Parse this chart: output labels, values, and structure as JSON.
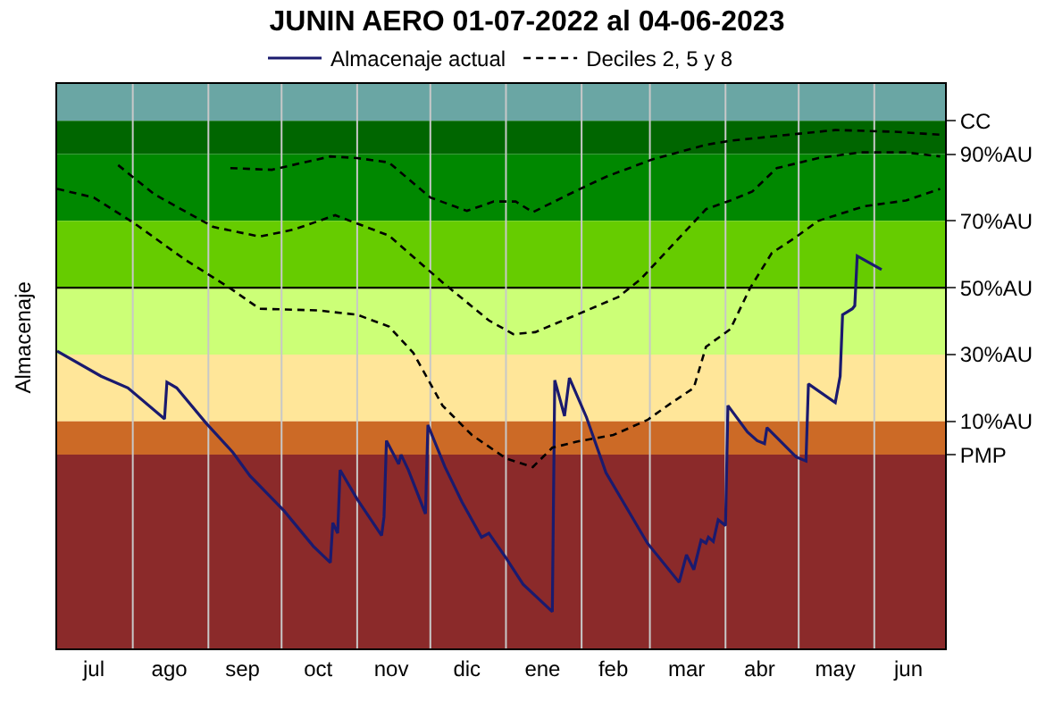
{
  "chart_data": {
    "type": "line",
    "title": "JUNIN AERO 01-07-2022 al 04-06-2023",
    "ylabel": "Almacenaje",
    "xlim": [
      "2022-07-01",
      "2023-06-30"
    ],
    "xticks": [
      {
        "value": "2022-07-16",
        "label": "jul"
      },
      {
        "value": "2022-08-16",
        "label": "ago"
      },
      {
        "value": "2022-09-15",
        "label": "sep"
      },
      {
        "value": "2022-10-16",
        "label": "oct"
      },
      {
        "value": "2022-11-15",
        "label": "nov"
      },
      {
        "value": "2022-12-16",
        "label": "dic"
      },
      {
        "value": "2023-01-16",
        "label": "ene"
      },
      {
        "value": "2023-02-14",
        "label": "feb"
      },
      {
        "value": "2023-03-16",
        "label": "mar"
      },
      {
        "value": "2023-04-15",
        "label": "abr"
      },
      {
        "value": "2023-05-16",
        "label": "may"
      },
      {
        "value": "2023-06-15",
        "label": "jun"
      }
    ],
    "ylim": [
      -58,
      111
    ],
    "yticks": [
      {
        "value": 100,
        "label": "CC"
      },
      {
        "value": 90,
        "label": "90%AU"
      },
      {
        "value": 70,
        "label": "70%AU"
      },
      {
        "value": 50,
        "label": "50%AU"
      },
      {
        "value": 30,
        "label": "30%AU"
      },
      {
        "value": 10,
        "label": "10%AU"
      },
      {
        "value": 0,
        "label": "PMP"
      }
    ],
    "grid": false,
    "legend": "top",
    "bands": [
      {
        "axis": "y",
        "from": 100,
        "to": 111,
        "color": "#6aa6a4"
      },
      {
        "axis": "y",
        "from": 90,
        "to": 100,
        "color": "#006600"
      },
      {
        "axis": "y",
        "from": 70,
        "to": 90,
        "color": "#008800"
      },
      {
        "axis": "y",
        "from": 50,
        "to": 70,
        "color": "#66cc00"
      },
      {
        "axis": "y",
        "from": 30,
        "to": 50,
        "color": "#ccff77"
      },
      {
        "axis": "y",
        "from": 10,
        "to": 30,
        "color": "#ffe699"
      },
      {
        "axis": "y",
        "from": 0,
        "to": 10,
        "color": "#cc6a26"
      },
      {
        "axis": "y",
        "from": -58,
        "to": 0,
        "color": "#8b2a2a"
      }
    ],
    "ref_lines": [
      {
        "axis": "y",
        "value": 50,
        "color": "#000000"
      },
      {
        "axis": "x",
        "value": "2022-08-01",
        "color": "#c8c8c8"
      },
      {
        "axis": "x",
        "value": "2022-09-01",
        "color": "#c8c8c8"
      },
      {
        "axis": "x",
        "value": "2022-10-01",
        "color": "#c8c8c8"
      },
      {
        "axis": "x",
        "value": "2022-11-01",
        "color": "#c8c8c8"
      },
      {
        "axis": "x",
        "value": "2022-12-01",
        "color": "#c8c8c8"
      },
      {
        "axis": "x",
        "value": "2023-01-01",
        "color": "#c8c8c8"
      },
      {
        "axis": "x",
        "value": "2023-02-01",
        "color": "#c8c8c8"
      },
      {
        "axis": "x",
        "value": "2023-03-01",
        "color": "#c8c8c8"
      },
      {
        "axis": "x",
        "value": "2023-04-01",
        "color": "#c8c8c8"
      },
      {
        "axis": "x",
        "value": "2023-05-01",
        "color": "#c8c8c8"
      },
      {
        "axis": "x",
        "value": "2023-06-01",
        "color": "#c8c8c8"
      }
    ],
    "series": [
      {
        "name": "Almacenaje actual",
        "color": "#1a1a6e",
        "line_style": "solid",
        "x": [
          "2022-07-01",
          "2022-07-19",
          "2022-07-30",
          "2022-08-14",
          "2022-08-15",
          "2022-08-19",
          "2022-08-31",
          "2022-09-11",
          "2022-09-18",
          "2022-10-02",
          "2022-10-14",
          "2022-10-21",
          "2022-10-22",
          "2022-10-24",
          "2022-10-25",
          "2022-11-01",
          "2022-11-11",
          "2022-11-12",
          "2022-11-13",
          "2022-11-18",
          "2022-11-19",
          "2022-11-22",
          "2022-11-29",
          "2022-11-30",
          "2022-12-07",
          "2022-12-14",
          "2022-12-22",
          "2022-12-25",
          "2023-01-01",
          "2023-01-08",
          "2023-01-20",
          "2023-01-21",
          "2023-01-25",
          "2023-01-27",
          "2023-02-03",
          "2023-02-11",
          "2023-02-28",
          "2023-03-13",
          "2023-03-16",
          "2023-03-19",
          "2023-03-22",
          "2023-03-24",
          "2023-03-25",
          "2023-03-27",
          "2023-03-29",
          "2023-04-01",
          "2023-04-02",
          "2023-04-10",
          "2023-04-14",
          "2023-04-17",
          "2023-04-18",
          "2023-04-30",
          "2023-05-04",
          "2023-05-05",
          "2023-05-16",
          "2023-05-18",
          "2023-05-19",
          "2023-05-21",
          "2023-05-23",
          "2023-05-24",
          "2023-05-25",
          "2023-06-04"
        ],
        "values": [
          31,
          23.5,
          20,
          10.7,
          21.7,
          20,
          9.5,
          0.7,
          -6.3,
          -16.8,
          -27.4,
          -32.3,
          -20.4,
          -23.5,
          -4.6,
          -13.3,
          -24.2,
          -18.6,
          4.2,
          -2.8,
          0,
          -4.6,
          -17.7,
          8.9,
          -3.7,
          -14.2,
          -24.7,
          -23.5,
          -30.9,
          -38.8,
          -47,
          22.3,
          11.6,
          23,
          11.2,
          -5.4,
          -26.5,
          -38.2,
          -30,
          -34.4,
          -25.6,
          -26.5,
          -24.7,
          -26,
          -19.5,
          -21.2,
          14.7,
          6.8,
          4.2,
          3.3,
          8.1,
          -0.7,
          -1.9,
          21.2,
          15.6,
          23.5,
          41.9,
          42.8,
          43.7,
          44.6,
          59.5,
          55.4
        ]
      },
      {
        "name": "Deciles 2, 5 y 8",
        "color": "#000000",
        "line_style": "dashed",
        "x": [
          "2022-09-10",
          "2022-09-27",
          "2022-10-21",
          "2022-11-01",
          "2022-11-14",
          "2022-12-01",
          "2022-12-16",
          "2022-12-27",
          "2023-01-05",
          "2023-01-12",
          "2023-01-30",
          "2023-02-11",
          "2023-03-02",
          "2023-03-24",
          "2023-04-03",
          "2023-04-27",
          "2023-05-16",
          "2023-06-09",
          "2023-06-28"
        ],
        "values": [
          85.8,
          85.3,
          89.3,
          88.8,
          87.5,
          77,
          73,
          75.8,
          75.8,
          72.6,
          79.1,
          83.2,
          88.4,
          92.8,
          94,
          95.8,
          97.2,
          96.7,
          95.8
        ]
      },
      {
        "color": "#000000",
        "line_style": "dashed",
        "x": [
          "2022-07-26",
          "2022-08-10",
          "2022-09-03",
          "2022-09-22",
          "2022-10-06",
          "2022-10-23",
          "2022-11-14",
          "2022-12-06",
          "2022-12-25",
          "2023-01-04",
          "2023-01-13",
          "2023-01-30",
          "2023-02-16",
          "2023-02-25",
          "2023-03-24",
          "2023-04-03",
          "2023-04-12",
          "2023-04-22",
          "2023-05-09",
          "2023-05-26",
          "2023-06-14",
          "2023-06-28"
        ],
        "values": [
          86.7,
          77.9,
          68.2,
          65.3,
          67.4,
          71.7,
          65.6,
          51.6,
          40.2,
          36.1,
          36.7,
          41.9,
          47.2,
          52.4,
          73.5,
          76.1,
          78.8,
          85.8,
          88.8,
          90.5,
          90.5,
          89.3
        ]
      },
      {
        "color": "#000000",
        "line_style": "dashed",
        "x": [
          "2022-07-01",
          "2022-07-16",
          "2022-08-02",
          "2022-08-22",
          "2022-09-10",
          "2022-09-22",
          "2022-10-16",
          "2022-11-01",
          "2022-11-14",
          "2022-11-24",
          "2022-12-06",
          "2022-12-18",
          "2023-01-01",
          "2023-01-12",
          "2023-01-20",
          "2023-01-30",
          "2023-02-14",
          "2023-02-28",
          "2023-03-10",
          "2023-03-19",
          "2023-03-24",
          "2023-04-03",
          "2023-04-11",
          "2023-04-20",
          "2023-04-29",
          "2023-05-09",
          "2023-05-28",
          "2023-06-14",
          "2023-06-28"
        ],
        "values": [
          79.6,
          77,
          69.1,
          58.6,
          49.8,
          43.7,
          43.2,
          41.9,
          38.4,
          30.5,
          14.7,
          5.9,
          -1.1,
          -3.7,
          2.1,
          3.9,
          5.9,
          10.4,
          15.6,
          20,
          32.3,
          37.6,
          49.8,
          60.4,
          64.7,
          70,
          74.4,
          76.1,
          79.6
        ]
      }
    ]
  }
}
